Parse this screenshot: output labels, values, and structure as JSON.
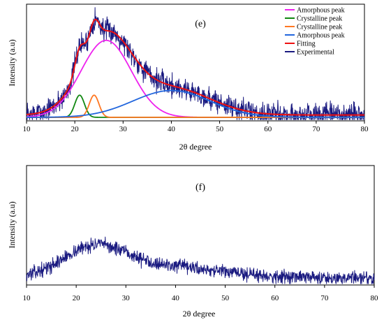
{
  "chart_data": [
    {
      "type": "line",
      "panel_label": "(e)",
      "xlabel": "2θ degree",
      "ylabel": "Intensity (a.u)",
      "xlim": [
        10,
        80
      ],
      "ylim": [
        0,
        1.0
      ],
      "xticks": [
        10,
        20,
        30,
        40,
        50,
        60,
        70,
        80
      ],
      "legend_position": "top-right",
      "series": [
        {
          "name": "Amorphous peak",
          "color": "#ee22ee",
          "kind": "gauss",
          "peaks": [
            {
              "amp": 0.66,
              "center": 26.5,
              "sigma": 5.2
            }
          ]
        },
        {
          "name": "Crystalline peak",
          "color": "#118811",
          "kind": "gauss",
          "peaks": [
            {
              "amp": 0.19,
              "center": 21.0,
              "sigma": 1.0
            }
          ]
        },
        {
          "name": "Crystalline peak",
          "color": "#ff7722",
          "kind": "gauss",
          "peaks": [
            {
              "amp": 0.19,
              "center": 24.0,
              "sigma": 1.0
            }
          ]
        },
        {
          "name": "Amorphous peak",
          "color": "#2266dd",
          "kind": "gauss",
          "peaks": [
            {
              "amp": 0.23,
              "center": 40.0,
              "sigma": 8.0
            }
          ]
        },
        {
          "name": "Fitting",
          "color": "#ee1111",
          "kind": "sum",
          "baseline": 0.05
        },
        {
          "name": "Experimental",
          "color": "#1a1a80",
          "kind": "noisy-sum",
          "noise": 0.045,
          "seed": 7
        }
      ]
    },
    {
      "type": "line",
      "panel_label": "(f)",
      "xlabel": "2θ degree",
      "ylabel": "Intensity (a.u)",
      "xlim": [
        10,
        80
      ],
      "ylim": [
        0,
        1.0
      ],
      "xticks": [
        10,
        20,
        30,
        40,
        50,
        60,
        70,
        80
      ],
      "series": [
        {
          "name": "",
          "color": "#1a1a80",
          "kind": "profile",
          "noise": 0.025,
          "seed": 13,
          "profile": {
            "baseline": 0.06,
            "end_level": 0.06,
            "peaks": [
              {
                "amp": 0.22,
                "center": 23.5,
                "sigma": 6.0
              },
              {
                "amp": 0.1,
                "center": 36.0,
                "sigma": 12.0
              }
            ]
          }
        }
      ]
    }
  ]
}
